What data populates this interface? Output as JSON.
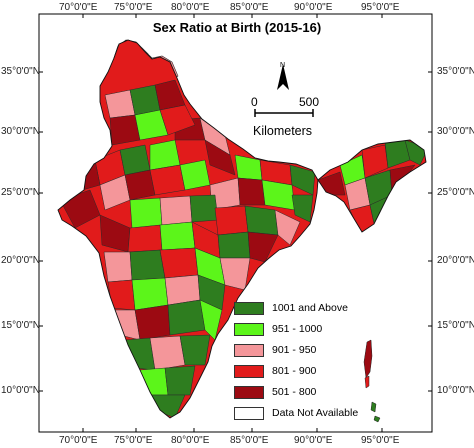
{
  "title": "Sex Ratio at Birth (2015-16)",
  "longitude_labels": [
    "70°0'0\"E",
    "75°0'0\"E",
    "80°0'0\"E",
    "85°0'0\"E",
    "90°0'0\"E",
    "95°0'0\"E"
  ],
  "latitude_labels": [
    "35°0'0\"N",
    "30°0'0\"N",
    "25°0'0\"N",
    "20°0'0\"N",
    "15°0'0\"N",
    "10°0'0\"N"
  ],
  "scale_bar": {
    "start": "0",
    "end": "500",
    "unit": "Kilometers"
  },
  "north_arrow": {
    "label": "N"
  },
  "legend": [
    {
      "label": "1001 and Above",
      "color": "#2e7d1f"
    },
    {
      "label": "951 - 1000",
      "color": "#5cf51a"
    },
    {
      "label": "901 - 950",
      "color": "#f4969a"
    },
    {
      "label": "801 - 900",
      "color": "#e11b1b"
    },
    {
      "label": "501 - 800",
      "color": "#9c0a12"
    },
    {
      "label": "Data Not Available",
      "color": "#ffffff"
    }
  ],
  "colors": {
    "district_border": "#2a2a2a",
    "map_frame": "#000000"
  }
}
